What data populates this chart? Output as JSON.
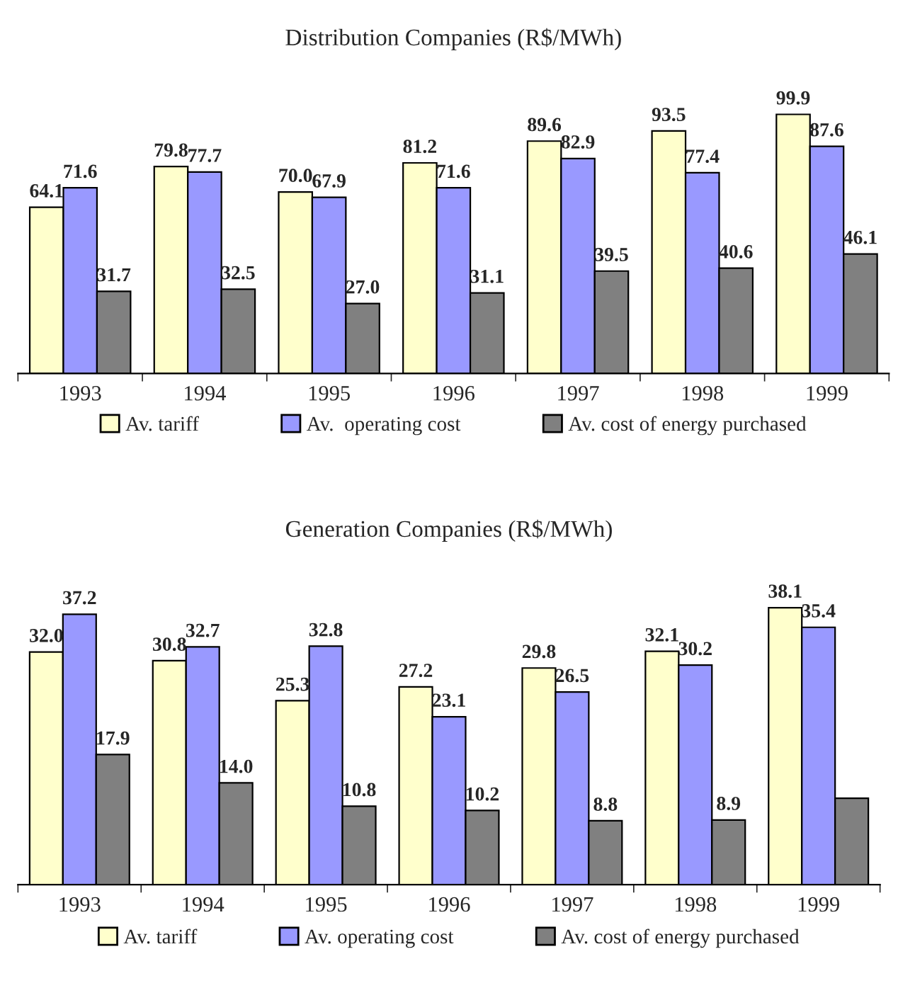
{
  "chart_data": [
    {
      "type": "bar",
      "title": "Distribution Companies (R$/MWh)",
      "categories": [
        "1993",
        "1994",
        "1995",
        "1996",
        "1997",
        "1998",
        "1999"
      ],
      "legend": "bottom",
      "series": [
        {
          "name": "Av. tariff",
          "color": "#ffffcc",
          "values": [
            64.1,
            79.8,
            70.0,
            81.2,
            89.6,
            93.5,
            99.9
          ],
          "value_labels": [
            "64.1",
            "79.8",
            "70.0",
            "81.2",
            "89.6",
            "93.5",
            "99.9"
          ]
        },
        {
          "name": "Av.  operating cost",
          "color": "#9999ff",
          "values": [
            71.6,
            77.7,
            67.9,
            71.6,
            82.9,
            77.4,
            87.6
          ],
          "value_labels": [
            "71.6",
            "77.7",
            "67.9",
            "71.6",
            "82.9",
            "77.4",
            "87.6"
          ]
        },
        {
          "name": "Av. cost of energy purchased",
          "color": "#808080",
          "values": [
            31.7,
            32.5,
            27.0,
            31.1,
            39.5,
            40.6,
            46.1
          ],
          "value_labels": [
            "31.7",
            "32.5",
            "27.0",
            "31.1",
            "39.5",
            "40.6",
            "46.1"
          ]
        }
      ]
    },
    {
      "type": "bar",
      "title": "Generation Companies (R$/MWh)",
      "categories": [
        "1993",
        "1994",
        "1995",
        "1996",
        "1997",
        "1998",
        "1999"
      ],
      "legend": "bottom",
      "series": [
        {
          "name": "Av. tariff",
          "color": "#ffffcc",
          "values": [
            32.0,
            30.8,
            25.3,
            27.2,
            29.8,
            32.1,
            38.1
          ],
          "value_labels": [
            "32.0",
            "30.8",
            "25.3",
            "27.2",
            "29.8",
            "32.1",
            "38.1"
          ]
        },
        {
          "name": "Av. operating cost",
          "color": "#9999ff",
          "values": [
            37.2,
            32.7,
            32.8,
            23.1,
            26.5,
            30.2,
            35.4
          ],
          "value_labels": [
            "37.2",
            "32.7",
            "32.8",
            "23.1",
            "26.5",
            "30.2",
            "35.4"
          ]
        },
        {
          "name": "Av. cost of energy purchased",
          "color": "#808080",
          "values": [
            17.9,
            14.0,
            10.8,
            10.2,
            8.8,
            8.9,
            11.9
          ],
          "value_labels": [
            "17.9",
            "14.0",
            "10.8",
            "10.2",
            "8.8",
            "8.9",
            null
          ]
        }
      ]
    }
  ]
}
